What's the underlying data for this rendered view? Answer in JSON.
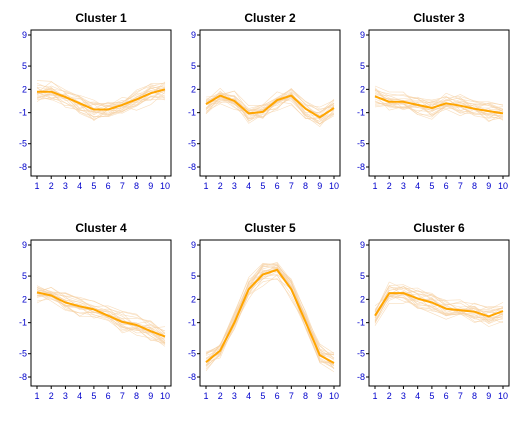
{
  "figure": {
    "ytick_labels": [
      "9",
      "5",
      "2",
      "-1",
      "-5",
      "-8"
    ],
    "xtick_labels": [
      "1",
      "2",
      "3",
      "4",
      "5",
      "6",
      "7",
      "8",
      "9",
      "10"
    ]
  },
  "colors": {
    "mean_line": "#FFA500",
    "member_lines": "#F6D2A6",
    "tick_text": "#0000CC",
    "frame": "#000000"
  },
  "chart_data": [
    {
      "type": "line",
      "title": "Cluster 1",
      "xlabel": "",
      "ylabel": "",
      "x": [
        1,
        2,
        3,
        4,
        5,
        6,
        7,
        8,
        9,
        10
      ],
      "xlim": [
        1,
        10
      ],
      "ylim": [
        -8,
        9
      ],
      "yticks": [
        9,
        5,
        2,
        -1,
        -5,
        -8
      ],
      "grid": false,
      "legend": "none",
      "series": [
        {
          "values": [
            1.7,
            1.7,
            1.0,
            0.2,
            -0.6,
            -0.6,
            0.0,
            0.7,
            1.5,
            2.0
          ]
        }
      ]
    },
    {
      "type": "line",
      "title": "Cluster 2",
      "xlabel": "",
      "ylabel": "",
      "x": [
        1,
        2,
        3,
        4,
        5,
        6,
        7,
        8,
        9,
        10
      ],
      "xlim": [
        1,
        10
      ],
      "ylim": [
        -8,
        9
      ],
      "yticks": [
        9,
        5,
        2,
        -1,
        -5,
        -8
      ],
      "grid": false,
      "legend": "none",
      "series": [
        {
          "values": [
            0.1,
            1.2,
            0.5,
            -1.1,
            -0.9,
            0.6,
            1.2,
            -0.5,
            -1.6,
            -0.4
          ]
        }
      ]
    },
    {
      "type": "line",
      "title": "Cluster 3",
      "xlabel": "",
      "ylabel": "",
      "x": [
        1,
        2,
        3,
        4,
        5,
        6,
        7,
        8,
        9,
        10
      ],
      "xlim": [
        1,
        10
      ],
      "ylim": [
        -8,
        9
      ],
      "yticks": [
        9,
        5,
        2,
        -1,
        -5,
        -8
      ],
      "grid": false,
      "legend": "none",
      "series": [
        {
          "values": [
            1.1,
            0.4,
            0.4,
            0.0,
            -0.4,
            0.2,
            -0.1,
            -0.5,
            -0.8,
            -1.1
          ]
        }
      ]
    },
    {
      "type": "line",
      "title": "Cluster 4",
      "xlabel": "",
      "ylabel": "",
      "x": [
        1,
        2,
        3,
        4,
        5,
        6,
        7,
        8,
        9,
        10
      ],
      "xlim": [
        1,
        10
      ],
      "ylim": [
        -8,
        9
      ],
      "yticks": [
        9,
        5,
        2,
        -1,
        -5,
        -8
      ],
      "grid": false,
      "legend": "none",
      "series": [
        {
          "values": [
            2.9,
            2.5,
            1.6,
            1.1,
            0.7,
            -0.1,
            -0.9,
            -1.3,
            -2.1,
            -2.8
          ]
        }
      ]
    },
    {
      "type": "line",
      "title": "Cluster 5",
      "xlabel": "",
      "ylabel": "",
      "x": [
        1,
        2,
        3,
        4,
        5,
        6,
        7,
        8,
        9,
        10
      ],
      "xlim": [
        1,
        10
      ],
      "ylim": [
        -8,
        9
      ],
      "yticks": [
        9,
        5,
        2,
        -1,
        -5,
        -8
      ],
      "grid": false,
      "legend": "none",
      "series": [
        {
          "values": [
            -6.1,
            -4.6,
            -1.0,
            3.3,
            5.2,
            5.8,
            3.3,
            -0.9,
            -5.2,
            -6.2
          ]
        }
      ]
    },
    {
      "type": "line",
      "title": "Cluster 6",
      "xlabel": "",
      "ylabel": "",
      "x": [
        1,
        2,
        3,
        4,
        5,
        6,
        7,
        8,
        9,
        10
      ],
      "xlim": [
        1,
        10
      ],
      "ylim": [
        -8,
        9
      ],
      "yticks": [
        9,
        5,
        2,
        -1,
        -5,
        -8
      ],
      "grid": false,
      "legend": "none",
      "series": [
        {
          "values": [
            -0.1,
            2.8,
            2.8,
            2.1,
            1.6,
            0.8,
            0.6,
            0.4,
            -0.2,
            0.5
          ]
        }
      ]
    }
  ]
}
